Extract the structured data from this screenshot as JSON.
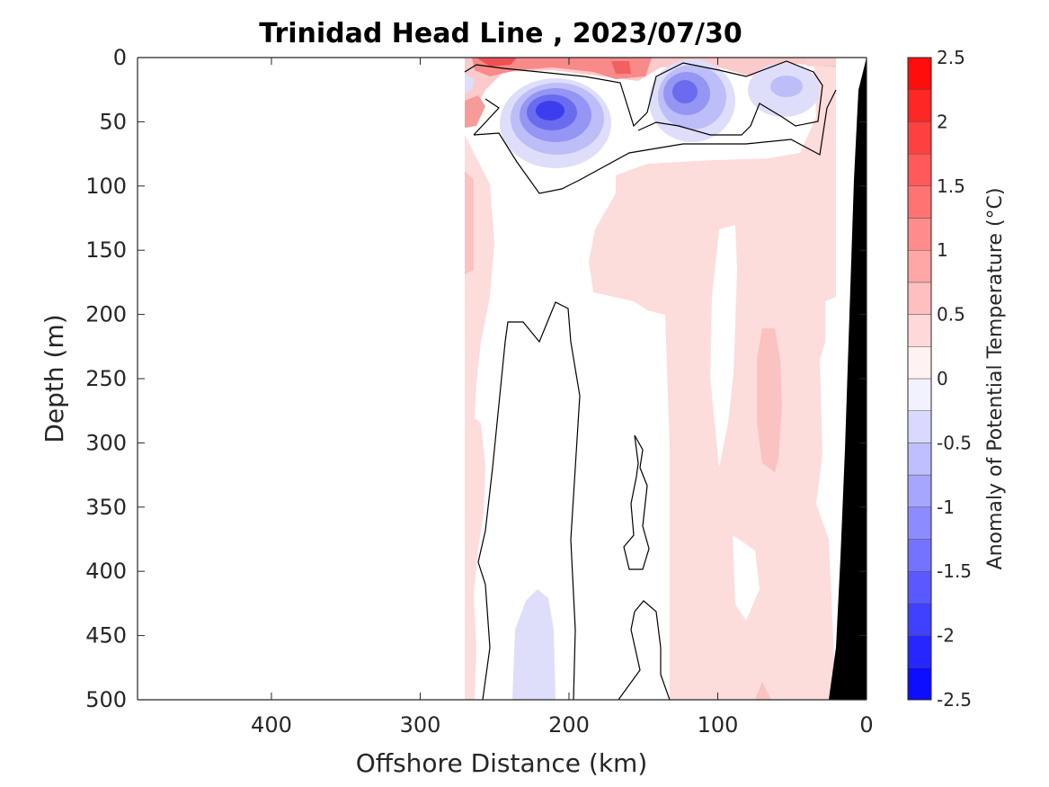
{
  "chart_data": {
    "type": "heatmap",
    "title": "Trinidad Head Line , 2023/07/30",
    "xlabel": "Offshore Distance (km)",
    "ylabel": "Depth (m)",
    "colorbar_label": "Anomaly of Potential Temperature (°C)",
    "xlim": [
      490,
      0
    ],
    "ylim": [
      500,
      0
    ],
    "x_reversed": true,
    "y_reversed": true,
    "xticks": [
      400,
      300,
      200,
      100,
      0
    ],
    "xtick_labels": [
      "400",
      "300",
      "200",
      "100",
      "0"
    ],
    "yticks": [
      0,
      50,
      100,
      150,
      200,
      250,
      300,
      350,
      400,
      450,
      500
    ],
    "ytick_labels": [
      "0",
      "50",
      "100",
      "150",
      "200",
      "250",
      "300",
      "350",
      "400",
      "450",
      "500"
    ],
    "colorbar_ticks": [
      2.5,
      2,
      1.5,
      1,
      0.5,
      0,
      -0.5,
      -1,
      -1.5,
      -2,
      -2.5
    ],
    "colorbar_tick_labels": [
      "2.5",
      "2",
      "1.5",
      "1",
      "0.5",
      "0",
      "-0.5",
      "-1",
      "-1.5",
      "-2",
      "-2.5"
    ],
    "colorbar_range": [
      -2.5,
      2.5
    ],
    "colorbar_levels": 20,
    "data_extent_km": [
      270,
      0
    ],
    "land_color": "#000000",
    "colormap": "red-white-blue",
    "features": [
      {
        "label": "warm surface anomaly",
        "x_range": [
          270,
          20
        ],
        "depth_range": [
          0,
          20
        ],
        "value": 1.6
      },
      {
        "label": "cold core",
        "x_center": 210,
        "depth_center": 45,
        "value": -2.0
      },
      {
        "label": "cold core",
        "x_center": 125,
        "depth_center": 28,
        "value": -1.6
      },
      {
        "label": "cold core",
        "x_center": 55,
        "depth_center": 22,
        "value": -0.8
      },
      {
        "label": "warm column",
        "x_range": [
          150,
          30
        ],
        "depth_range": [
          60,
          500
        ],
        "value": 0.4
      },
      {
        "label": "warm pocket",
        "x_center": 65,
        "depth_center": 270,
        "value": 0.7
      },
      {
        "label": "cool patch",
        "x_center": 225,
        "depth_center": 470,
        "value": -0.3
      }
    ]
  }
}
